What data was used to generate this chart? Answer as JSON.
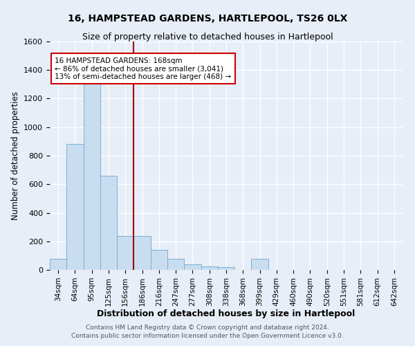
{
  "title": "16, HAMPSTEAD GARDENS, HARTLEPOOL, TS26 0LX",
  "subtitle": "Size of property relative to detached houses in Hartlepool",
  "xlabel": "Distribution of detached houses by size in Hartlepool",
  "ylabel": "Number of detached properties",
  "bar_labels": [
    "34sqm",
    "64sqm",
    "95sqm",
    "125sqm",
    "156sqm",
    "186sqm",
    "216sqm",
    "247sqm",
    "277sqm",
    "308sqm",
    "338sqm",
    "368sqm",
    "399sqm",
    "429sqm",
    "460sqm",
    "490sqm",
    "520sqm",
    "551sqm",
    "581sqm",
    "612sqm",
    "642sqm"
  ],
  "bar_values": [
    80,
    880,
    1310,
    660,
    240,
    240,
    140,
    80,
    40,
    25,
    20,
    0,
    80,
    0,
    0,
    0,
    0,
    0,
    0,
    0,
    0
  ],
  "bar_color": "#c9ddf0",
  "bar_edge_color": "#7aaed6",
  "vline_x": 5,
  "vline_color": "#990000",
  "annotation_title": "16 HAMPSTEAD GARDENS: 168sqm",
  "annotation_line1": "← 86% of detached houses are smaller (3,041)",
  "annotation_line2": "13% of semi-detached houses are larger (468) →",
  "annotation_box_facecolor": "#ffffff",
  "annotation_box_edgecolor": "#cc0000",
  "ylim": [
    0,
    1600
  ],
  "yticks": [
    0,
    200,
    400,
    600,
    800,
    1000,
    1200,
    1400,
    1600
  ],
  "footer1": "Contains HM Land Registry data © Crown copyright and database right 2024.",
  "footer2": "Contains public sector information licensed under the Open Government Licence v3.0.",
  "bg_color": "#e8eef7",
  "plot_bg_color": "#e8eef7",
  "title_fontsize": 10,
  "subtitle_fontsize": 9,
  "ylabel_fontsize": 8.5,
  "xlabel_fontsize": 9,
  "tick_fontsize": 8,
  "xtick_fontsize": 7.5
}
